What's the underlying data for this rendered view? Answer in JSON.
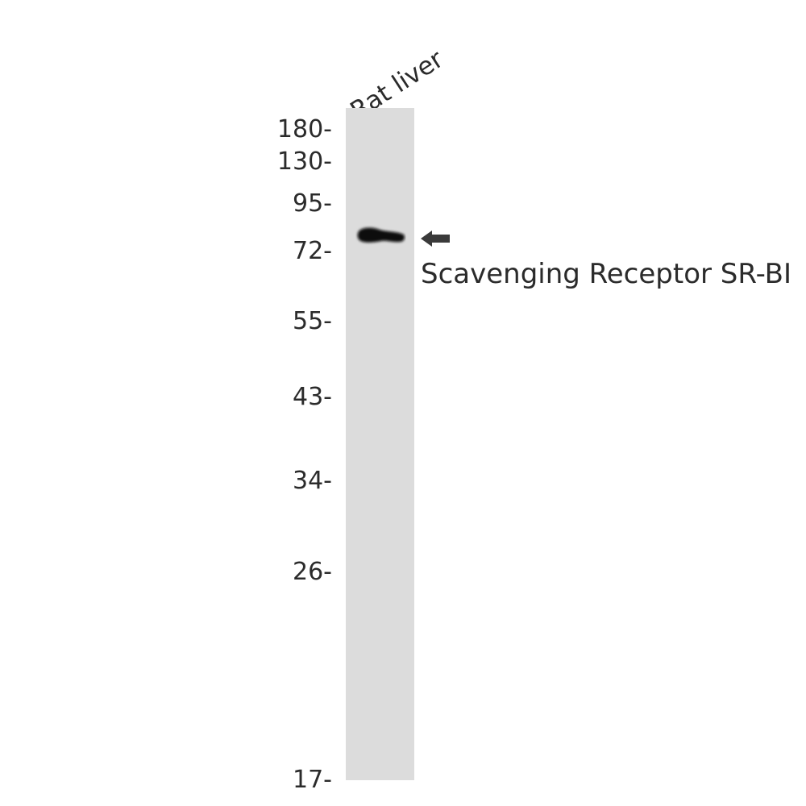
{
  "sample": {
    "lane_label": "Rat liver"
  },
  "markers": [
    {
      "label": "180-"
    },
    {
      "label": "130-"
    },
    {
      "label": "95-"
    },
    {
      "label": "72-"
    },
    {
      "label": "55-"
    },
    {
      "label": "43-"
    },
    {
      "label": "34-"
    },
    {
      "label": "26-"
    },
    {
      "label": "17-"
    }
  ],
  "band": {
    "annotation": "Scavenging Receptor SR-BI",
    "arrow_icon": "left-arrow-icon"
  },
  "colors": {
    "lane_background": "#dcdcdc",
    "band": "#0a0a0a",
    "text": "#2b2b2b",
    "arrow": "#3a3a3a"
  }
}
